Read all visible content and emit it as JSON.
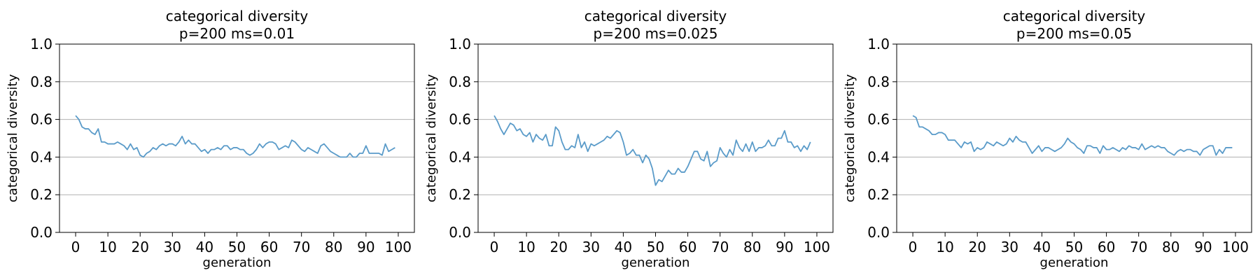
{
  "chart_data": [
    {
      "type": "line",
      "title": "categorical diversity",
      "subtitle": "p=200 ms=0.01",
      "xlabel": "generation",
      "ylabel": "categorical diversity",
      "xlim": [
        -5,
        105
      ],
      "ylim": [
        0,
        1
      ],
      "xticks": [
        "0",
        "10",
        "20",
        "30",
        "40",
        "50",
        "60",
        "70",
        "80",
        "90",
        "100"
      ],
      "yticks": [
        "0.0",
        "0.2",
        "0.4",
        "0.6",
        "0.8",
        "1.0"
      ],
      "grid": "y",
      "series": [
        {
          "color": "#5a9bc9",
          "values": [
            0.62,
            0.6,
            0.56,
            0.55,
            0.55,
            0.53,
            0.52,
            0.55,
            0.48,
            0.48,
            0.47,
            0.47,
            0.47,
            0.48,
            0.47,
            0.46,
            0.44,
            0.47,
            0.44,
            0.45,
            0.41,
            0.4,
            0.42,
            0.43,
            0.45,
            0.44,
            0.46,
            0.47,
            0.46,
            0.47,
            0.47,
            0.46,
            0.48,
            0.51,
            0.47,
            0.49,
            0.47,
            0.47,
            0.45,
            0.43,
            0.44,
            0.42,
            0.44,
            0.44,
            0.45,
            0.44,
            0.46,
            0.46,
            0.44,
            0.45,
            0.45,
            0.44,
            0.44,
            0.42,
            0.41,
            0.42,
            0.44,
            0.47,
            0.45,
            0.47,
            0.48,
            0.48,
            0.47,
            0.44,
            0.45,
            0.46,
            0.45,
            0.49,
            0.48,
            0.46,
            0.44,
            0.43,
            0.45,
            0.44,
            0.43,
            0.42,
            0.46,
            0.47,
            0.45,
            0.43,
            0.42,
            0.41,
            0.4,
            0.4,
            0.4,
            0.42,
            0.4,
            0.4,
            0.42,
            0.42,
            0.46,
            0.42,
            0.42,
            0.42,
            0.42,
            0.41,
            0.47,
            0.43,
            0.44,
            0.45
          ]
        }
      ]
    },
    {
      "type": "line",
      "title": "categorical diversity",
      "subtitle": "p=200 ms=0.025",
      "xlabel": "generation",
      "ylabel": "categorical diversity",
      "xlim": [
        -5,
        105
      ],
      "ylim": [
        0,
        1
      ],
      "xticks": [
        "0",
        "10",
        "20",
        "30",
        "40",
        "50",
        "60",
        "70",
        "80",
        "90",
        "100"
      ],
      "yticks": [
        "0.0",
        "0.2",
        "0.4",
        "0.6",
        "0.8",
        "1.0"
      ],
      "grid": "y",
      "series": [
        {
          "color": "#5a9bc9",
          "values": [
            0.62,
            0.59,
            0.55,
            0.52,
            0.55,
            0.58,
            0.57,
            0.54,
            0.55,
            0.52,
            0.51,
            0.53,
            0.48,
            0.52,
            0.5,
            0.49,
            0.52,
            0.46,
            0.46,
            0.56,
            0.54,
            0.48,
            0.44,
            0.44,
            0.46,
            0.45,
            0.52,
            0.45,
            0.48,
            0.43,
            0.47,
            0.46,
            0.47,
            0.48,
            0.49,
            0.51,
            0.5,
            0.52,
            0.54,
            0.53,
            0.48,
            0.41,
            0.42,
            0.44,
            0.41,
            0.41,
            0.37,
            0.41,
            0.39,
            0.34,
            0.25,
            0.28,
            0.27,
            0.3,
            0.33,
            0.31,
            0.31,
            0.34,
            0.32,
            0.32,
            0.35,
            0.39,
            0.43,
            0.43,
            0.39,
            0.38,
            0.43,
            0.35,
            0.37,
            0.38,
            0.45,
            0.42,
            0.4,
            0.44,
            0.41,
            0.49,
            0.45,
            0.43,
            0.47,
            0.43,
            0.48,
            0.43,
            0.45,
            0.45,
            0.46,
            0.49,
            0.46,
            0.46,
            0.5,
            0.5,
            0.54,
            0.48,
            0.48,
            0.45,
            0.46,
            0.43,
            0.46,
            0.44,
            0.48
          ]
        }
      ]
    },
    {
      "type": "line",
      "title": "categorical diversity",
      "subtitle": "p=200 ms=0.05",
      "xlabel": "generation",
      "ylabel": "categorical diversity",
      "xlim": [
        -5,
        105
      ],
      "ylim": [
        0,
        1
      ],
      "xticks": [
        "0",
        "10",
        "20",
        "30",
        "40",
        "50",
        "60",
        "70",
        "80",
        "90",
        "100"
      ],
      "yticks": [
        "0.0",
        "0.2",
        "0.4",
        "0.6",
        "0.8",
        "1.0"
      ],
      "grid": "y",
      "series": [
        {
          "color": "#5a9bc9",
          "values": [
            0.62,
            0.61,
            0.56,
            0.56,
            0.55,
            0.54,
            0.52,
            0.52,
            0.53,
            0.53,
            0.52,
            0.49,
            0.49,
            0.49,
            0.47,
            0.45,
            0.48,
            0.47,
            0.48,
            0.43,
            0.45,
            0.44,
            0.45,
            0.48,
            0.47,
            0.46,
            0.48,
            0.47,
            0.46,
            0.47,
            0.5,
            0.48,
            0.51,
            0.49,
            0.48,
            0.48,
            0.45,
            0.42,
            0.44,
            0.46,
            0.43,
            0.45,
            0.45,
            0.44,
            0.43,
            0.44,
            0.45,
            0.47,
            0.5,
            0.48,
            0.47,
            0.45,
            0.44,
            0.42,
            0.46,
            0.46,
            0.45,
            0.45,
            0.42,
            0.46,
            0.44,
            0.44,
            0.45,
            0.44,
            0.43,
            0.45,
            0.44,
            0.46,
            0.45,
            0.45,
            0.44,
            0.47,
            0.44,
            0.45,
            0.46,
            0.45,
            0.46,
            0.45,
            0.45,
            0.43,
            0.42,
            0.41,
            0.43,
            0.44,
            0.43,
            0.44,
            0.44,
            0.43,
            0.43,
            0.41,
            0.44,
            0.45,
            0.46,
            0.46,
            0.41,
            0.44,
            0.42,
            0.45,
            0.45,
            0.45
          ]
        }
      ]
    }
  ]
}
